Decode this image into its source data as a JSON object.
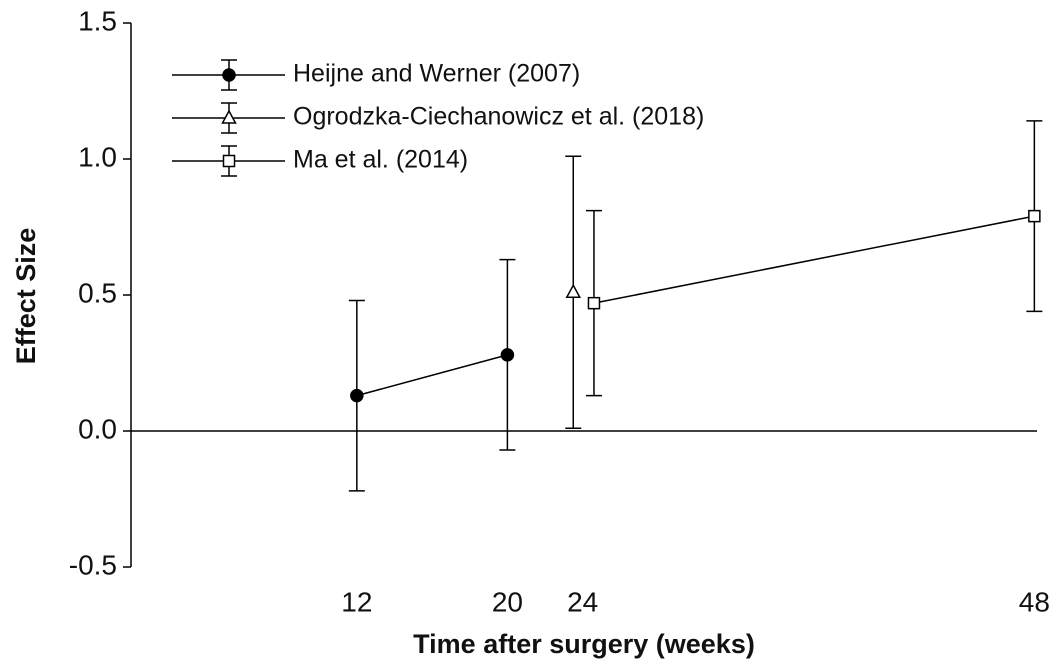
{
  "chart_data": {
    "type": "line",
    "xlabel": "Time after surgery (weeks)",
    "ylabel": "Effect Size",
    "xlim": [
      0,
      48.3
    ],
    "xticks": [
      12,
      20,
      24,
      48
    ],
    "ylim": [
      -0.5,
      1.5
    ],
    "yticks": [
      -0.5,
      {
        "value": 0,
        "label": "0.0"
      },
      0.5,
      {
        "value": 1,
        "label": "1.0"
      },
      1.5
    ],
    "zero_line": true,
    "legend": "upper left",
    "series": [
      {
        "name": "Heijne and Werner (2007)",
        "color": "#000000",
        "marker": "circle",
        "x": [
          12,
          20
        ],
        "values": [
          0.13,
          0.28
        ],
        "errors": [
          0.35,
          0.35
        ]
      },
      {
        "name": "Ogrodzka-Ciechanowicz et al. (2018)",
        "color": "#000000",
        "marker": "triangle",
        "x": [
          23.5
        ],
        "values": [
          0.51
        ],
        "errors": [
          0.5
        ]
      },
      {
        "name": "Ma et al. (2014)",
        "color": "#000000",
        "marker": "square",
        "x": [
          24.6,
          48
        ],
        "values": [
          0.47,
          0.79
        ],
        "errors": [
          0.34,
          0.35
        ]
      }
    ]
  }
}
